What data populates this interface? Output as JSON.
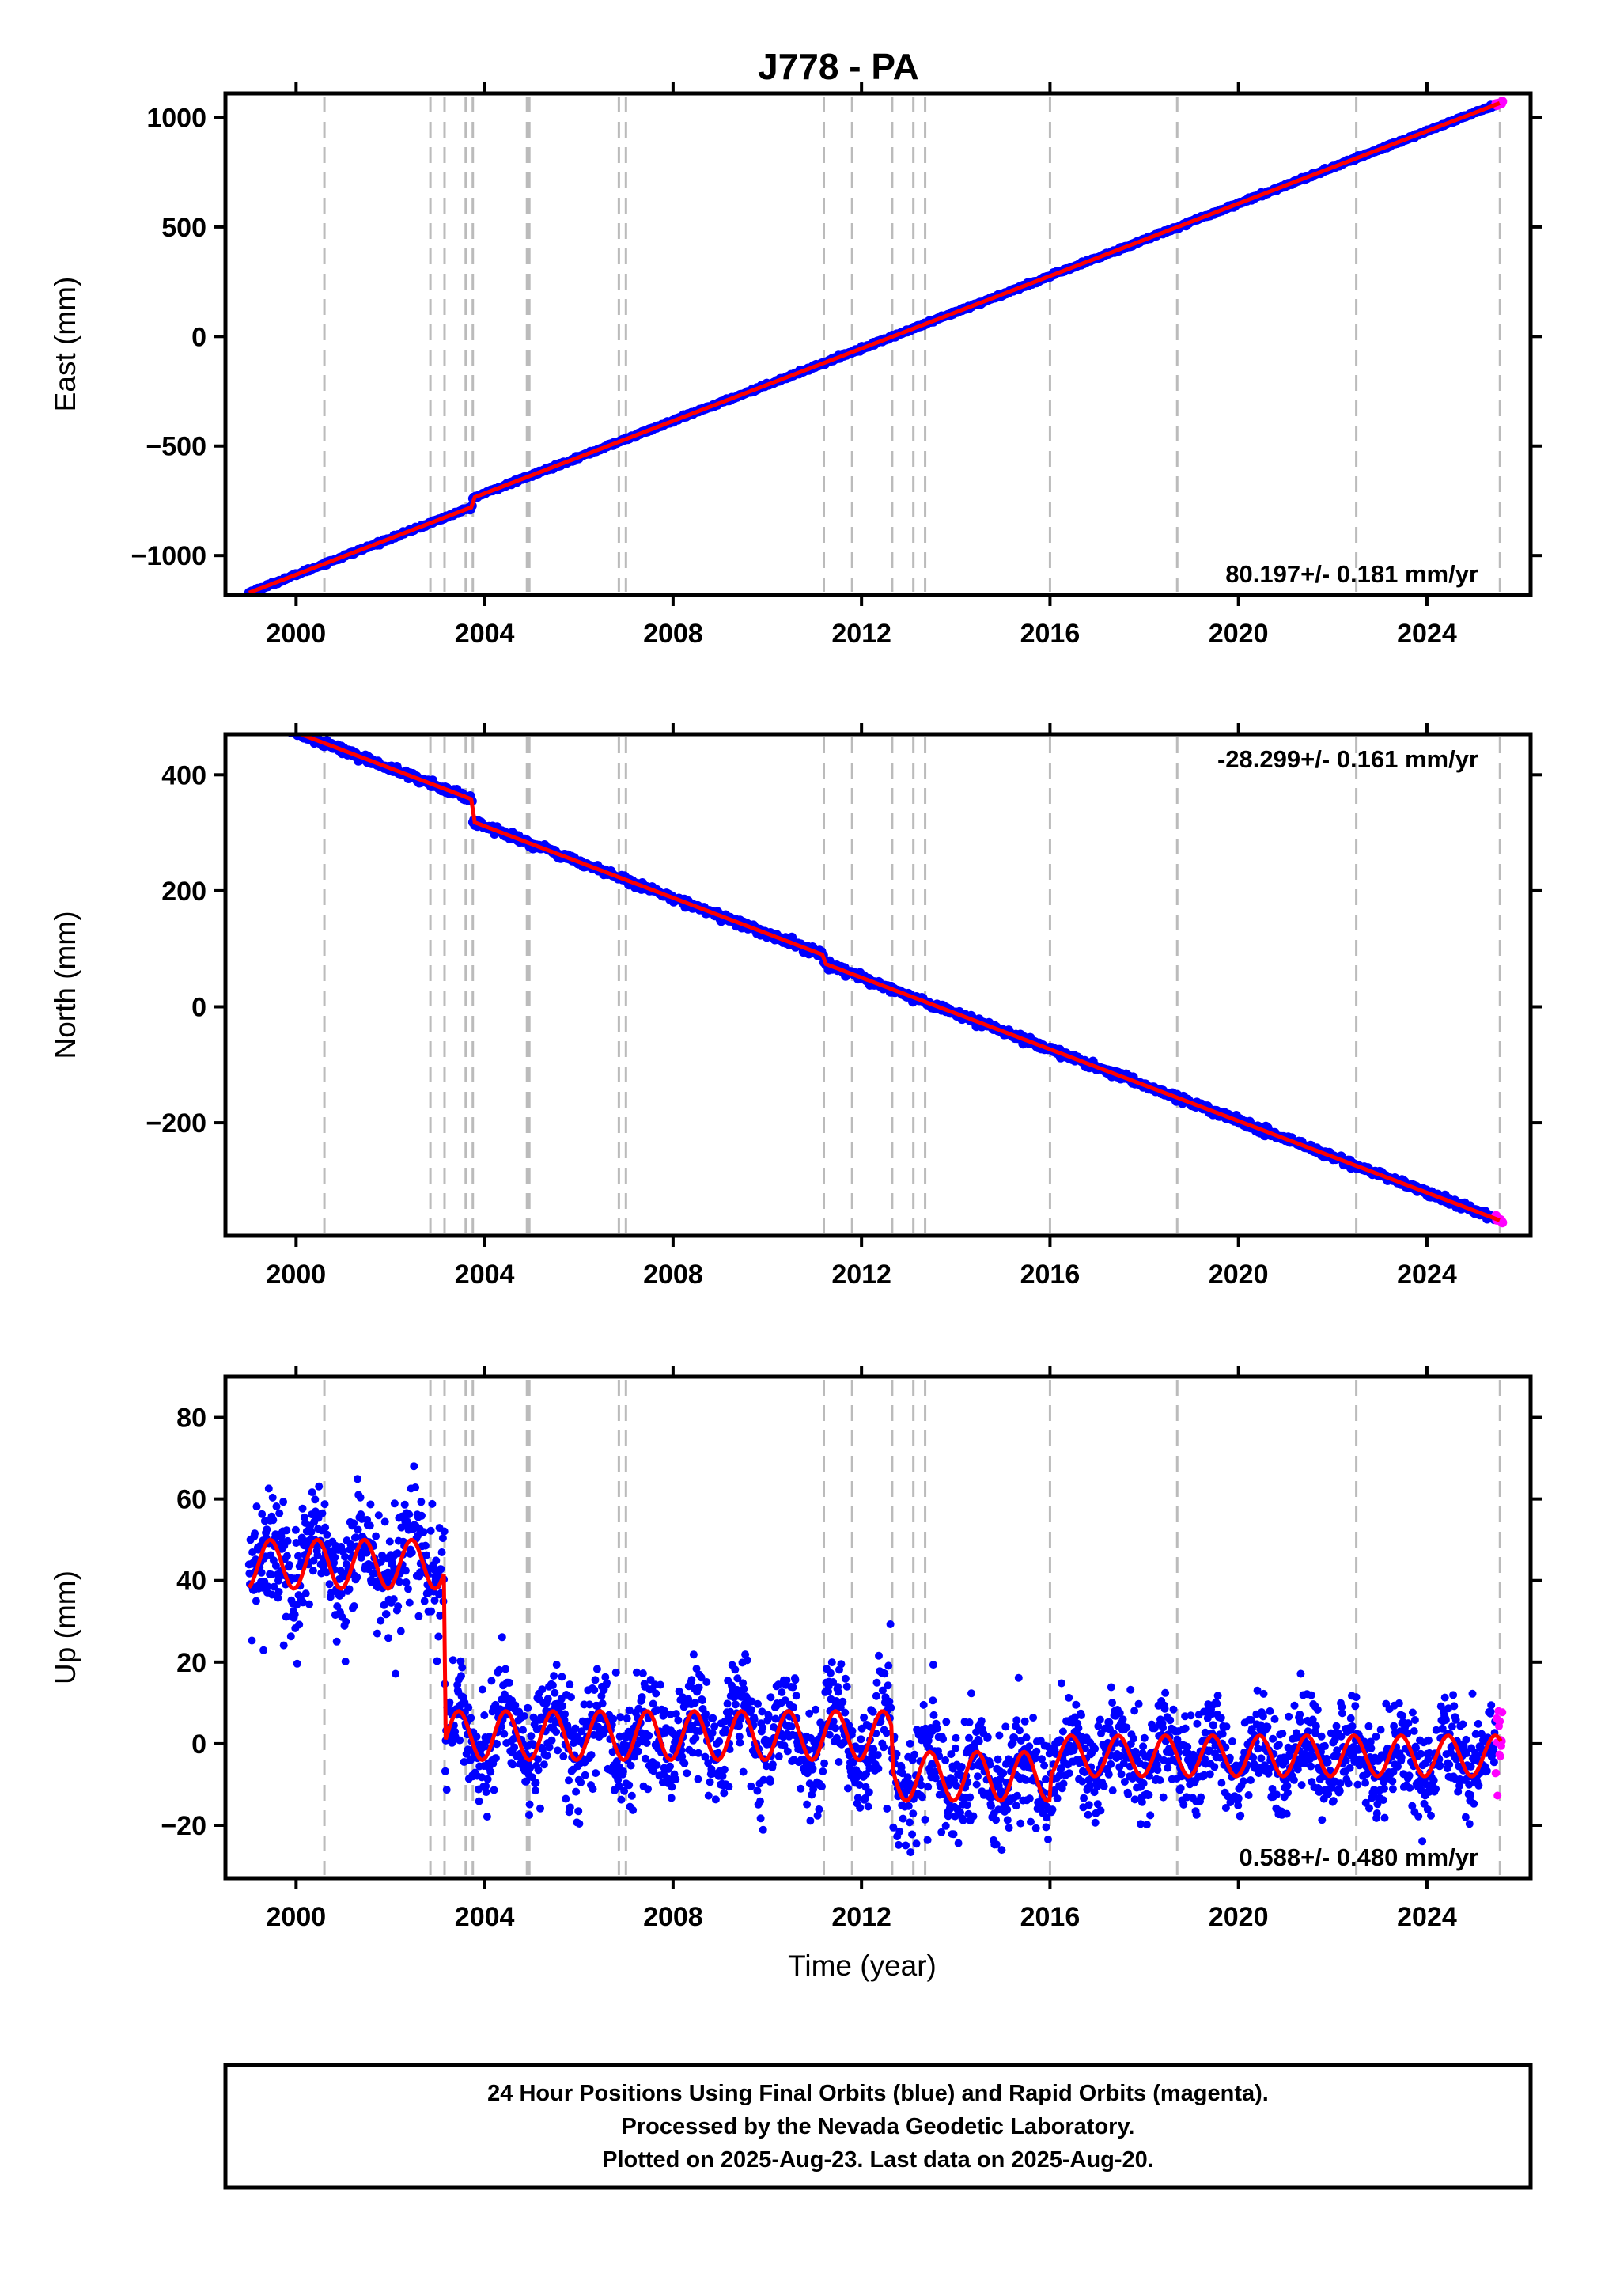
{
  "title": "J778 - PA",
  "colors": {
    "final": "#0000ff",
    "rapid": "#ff00ff",
    "model": "#ff0000",
    "events": "#bbbbbb",
    "frame": "#000000"
  },
  "events": [
    2000.6,
    2002.85,
    2003.15,
    2003.6,
    2003.75,
    2004.9,
    2004.95,
    2006.85,
    2007.0,
    2011.2,
    2011.8,
    2012.65,
    2013.1,
    2013.35,
    2016.0,
    2018.7,
    2022.5,
    2025.55
  ],
  "chart_data": [
    {
      "type": "scatter",
      "component": "east",
      "ylabel": "East (mm)",
      "xlim": [
        1998.5,
        2026.2
      ],
      "ylim": [
        -1180,
        1110
      ],
      "yticks": [
        -1000,
        -500,
        0,
        500,
        1000
      ],
      "ytick_labels": [
        "−1000",
        "−500",
        "0",
        "500",
        "1000"
      ],
      "xticks": [
        2000,
        2004,
        2008,
        2012,
        2016,
        2020,
        2024
      ],
      "xtick_labels": [
        "2000",
        "2004",
        "2008",
        "2012",
        "2016",
        "2020",
        "2024"
      ],
      "start": [
        1999.0,
        -1130
      ],
      "end": [
        2025.6,
        1070
      ],
      "rate_label": "80.197+/- 0.181 mm/yr",
      "rate_position": "bottom-right",
      "offsets": [
        [
          2003.75,
          40
        ]
      ],
      "series": [
        {
          "name": "Final Orbits (blue)"
        },
        {
          "name": "Rapid Orbits (magenta)"
        }
      ]
    },
    {
      "type": "scatter",
      "component": "north",
      "ylabel": "North (mm)",
      "xlim": [
        1998.5,
        2026.2
      ],
      "ylim": [
        -395,
        470
      ],
      "yticks": [
        -200,
        0,
        200,
        400
      ],
      "ytick_labels": [
        "−200",
        "0",
        "200",
        "400"
      ],
      "xticks": [
        2000,
        2004,
        2008,
        2012,
        2016,
        2020,
        2024
      ],
      "xtick_labels": [
        "2000",
        "2004",
        "2008",
        "2012",
        "2016",
        "2020",
        "2024"
      ],
      "start": [
        1999.0,
        452
      ],
      "end": [
        2025.6,
        -370
      ],
      "rate_label": "-28.299+/- 0.161 mm/yr",
      "rate_position": "top-right",
      "offsets": [
        [
          2003.75,
          -38
        ],
        [
          2011.2,
          -14
        ]
      ],
      "series": [
        {
          "name": "Final Orbits (blue)"
        },
        {
          "name": "Rapid Orbits (magenta)"
        }
      ]
    },
    {
      "type": "scatter",
      "component": "up",
      "ylabel": "Up (mm)",
      "xlabel": "Time (year)",
      "xlim": [
        1998.5,
        2026.2
      ],
      "ylim": [
        -33,
        90
      ],
      "yticks": [
        -20,
        0,
        20,
        40,
        60,
        80
      ],
      "ytick_labels": [
        "−20",
        "0",
        "20",
        "40",
        "60",
        "80"
      ],
      "xticks": [
        2000,
        2004,
        2008,
        2012,
        2016,
        2020,
        2024
      ],
      "xtick_labels": [
        "2000",
        "2004",
        "2008",
        "2012",
        "2016",
        "2020",
        "2024"
      ],
      "segments": [
        {
          "from": 1999.0,
          "to": 2003.15,
          "mean": 44,
          "amplitude": 6,
          "scatter": 7
        },
        {
          "from": 2003.15,
          "to": 2012.65,
          "mean": 2,
          "amplitude": 6,
          "scatter": 7
        },
        {
          "from": 2012.65,
          "to": 2016.0,
          "mean": -8,
          "amplitude": 6,
          "scatter": 7
        },
        {
          "from": 2016.0,
          "to": 2025.6,
          "mean": -3,
          "amplitude": 5,
          "scatter": 6
        }
      ],
      "rate_label": "0.588+/- 0.480 mm/yr",
      "rate_position": "bottom-right",
      "series": [
        {
          "name": "Final Orbits (blue)"
        },
        {
          "name": "Rapid Orbits (magenta)"
        }
      ]
    }
  ],
  "footer": {
    "line1": "24 Hour Positions Using Final Orbits (blue) and Rapid Orbits (magenta).",
    "line2": "Processed by the Nevada Geodetic Laboratory.",
    "line3": "Plotted on 2025-Aug-23. Last data on 2025-Aug-20."
  }
}
